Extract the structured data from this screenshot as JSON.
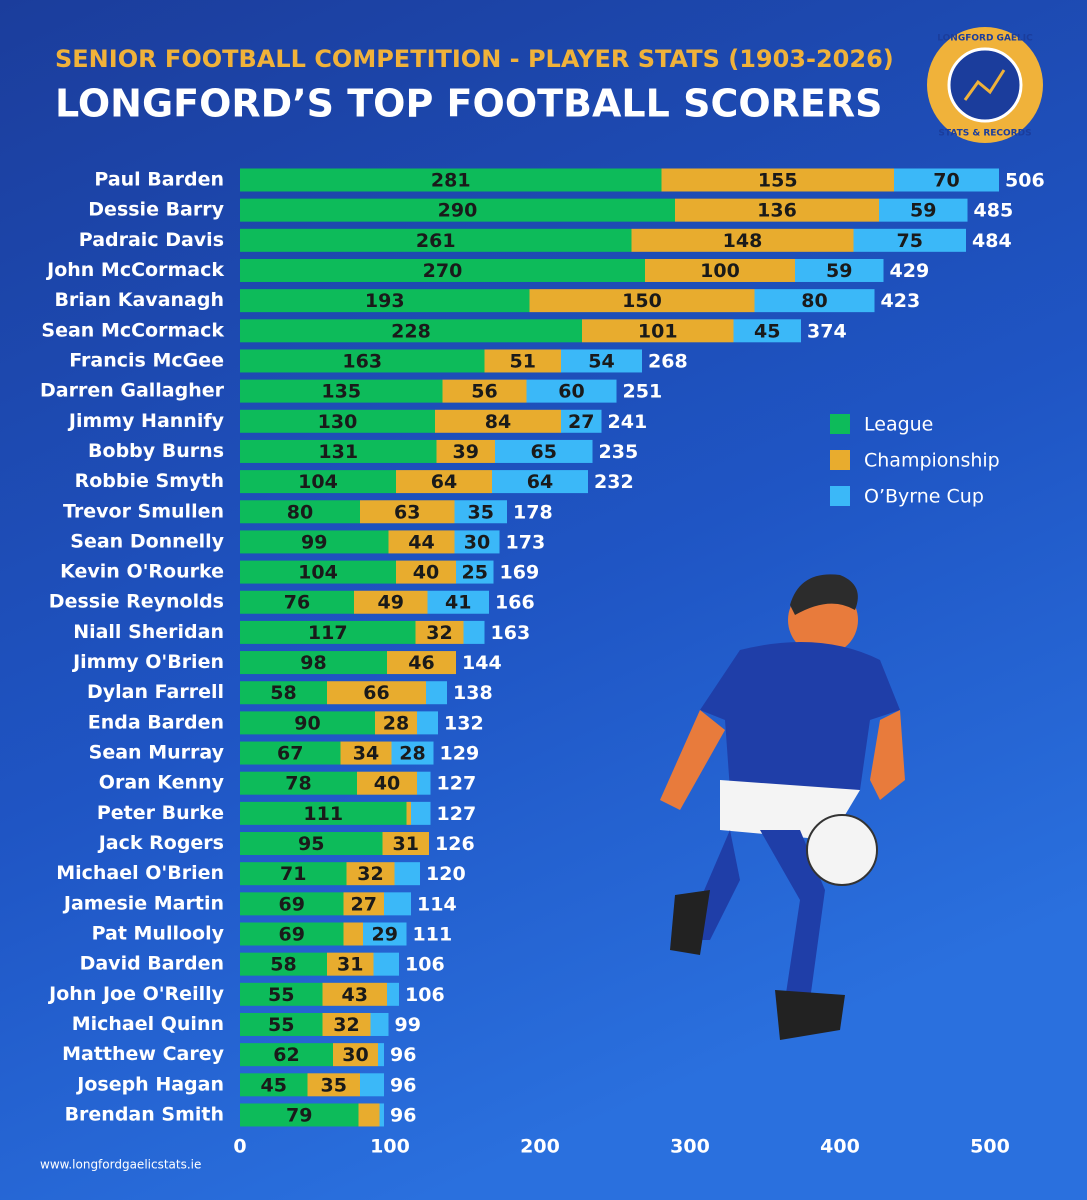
{
  "chart_data": {
    "type": "stacked-barh",
    "subtitle": "SENIOR FOOTBALL COMPETITION - PLAYER STATS (1903-2026)",
    "title": "LONGFORD’S TOP FOOTBALL SCORERS",
    "categories": [
      "Paul Barden",
      "Dessie Barry",
      "Padraic Davis",
      "John McCormack",
      "Brian Kavanagh",
      "Sean McCormack",
      "Francis McGee",
      "Darren Gallagher",
      "Jimmy Hannify",
      "Bobby Burns",
      "Robbie Smyth",
      "Trevor Smullen",
      "Sean Donnelly",
      "Kevin O'Rourke",
      "Dessie Reynolds",
      "Niall Sheridan",
      "Jimmy O'Brien",
      "Dylan Farrell",
      "Enda Barden",
      "Sean Murray",
      "Oran Kenny",
      "Peter Burke",
      "Jack Rogers",
      "Michael O'Brien",
      "Jamesie Martin",
      "Pat Mullooly",
      "David Barden",
      "John Joe O'Reilly",
      "Michael Quinn",
      "Matthew Carey",
      "Joseph Hagan",
      "Brendan Smith"
    ],
    "series": [
      {
        "name": "League",
        "color": "#0dbb5a",
        "values": [
          281,
          290,
          261,
          270,
          193,
          228,
          163,
          135,
          130,
          131,
          104,
          80,
          99,
          104,
          76,
          117,
          98,
          58,
          90,
          67,
          78,
          111,
          95,
          71,
          69,
          69,
          58,
          55,
          55,
          62,
          45,
          79
        ]
      },
      {
        "name": "Championship",
        "color": "#e8ac2e",
        "values": [
          155,
          136,
          148,
          100,
          150,
          101,
          51,
          56,
          84,
          39,
          64,
          63,
          44,
          40,
          49,
          32,
          46,
          66,
          28,
          34,
          40,
          3,
          31,
          32,
          27,
          13,
          31,
          43,
          32,
          30,
          35,
          14
        ]
      },
      {
        "name": "O’Byrne Cup",
        "color": "#3bb8f8",
        "values": [
          70,
          59,
          75,
          59,
          80,
          45,
          54,
          60,
          27,
          65,
          64,
          35,
          30,
          25,
          41,
          14,
          0,
          14,
          14,
          28,
          9,
          13,
          0,
          17,
          18,
          29,
          17,
          8,
          12,
          4,
          16,
          3
        ]
      }
    ],
    "totals": [
      506,
      485,
      484,
      429,
      423,
      374,
      268,
      251,
      241,
      235,
      232,
      178,
      173,
      169,
      166,
      163,
      144,
      138,
      132,
      129,
      127,
      127,
      126,
      120,
      114,
      111,
      106,
      106,
      99,
      96,
      96,
      96
    ],
    "xlim": [
      0,
      500
    ],
    "xticks": [
      0,
      100,
      200,
      300,
      400,
      500
    ],
    "legend": "right"
  },
  "branding": {
    "logo_top": "LONGFORD GAELIC",
    "logo_bottom": "STATS & RECORDS",
    "website": "www.longfordgaelicstats.ie"
  }
}
